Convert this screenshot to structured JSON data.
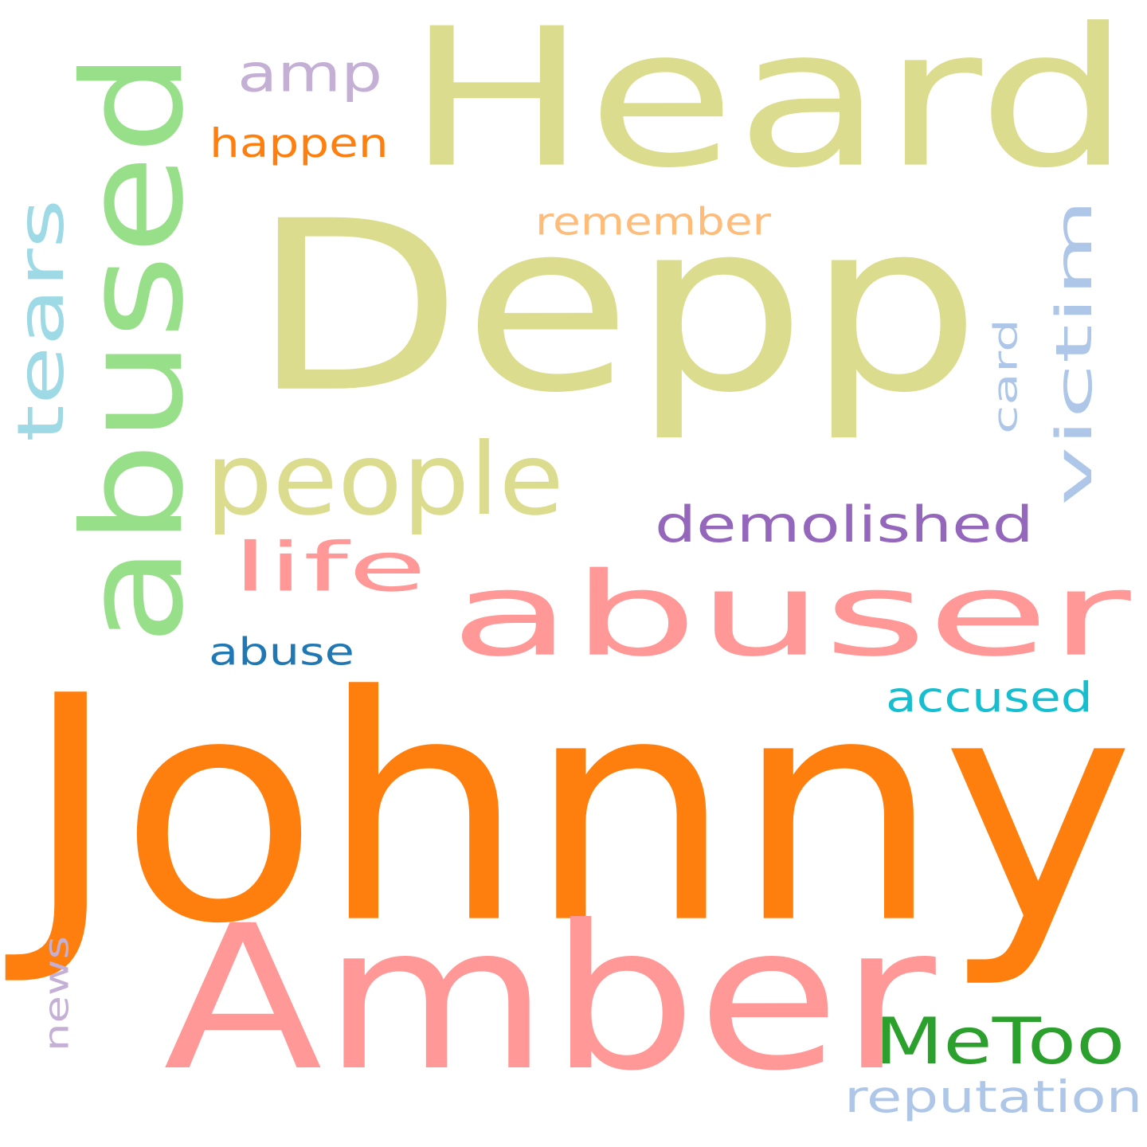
{
  "wordcloud": {
    "background": "#ffffff",
    "words": [
      {
        "text": "Heard",
        "color": "#dbdc8d",
        "orientation": "horizontal"
      },
      {
        "text": "Depp",
        "color": "#dbdc8d",
        "orientation": "horizontal"
      },
      {
        "text": "Johnny",
        "color": "#ff7f0e",
        "orientation": "horizontal"
      },
      {
        "text": "Amber",
        "color": "#ff9896",
        "orientation": "horizontal"
      },
      {
        "text": "abuser",
        "color": "#ff9896",
        "orientation": "horizontal"
      },
      {
        "text": "abused",
        "color": "#98df8a",
        "orientation": "vertical"
      },
      {
        "text": "people",
        "color": "#dbdc8d",
        "orientation": "horizontal"
      },
      {
        "text": "amp",
        "color": "#c5b0d5",
        "orientation": "horizontal"
      },
      {
        "text": "happen",
        "color": "#ff7f0e",
        "orientation": "horizontal"
      },
      {
        "text": "remember",
        "color": "#ffbb78",
        "orientation": "horizontal"
      },
      {
        "text": "tears",
        "color": "#9edae5",
        "orientation": "vertical"
      },
      {
        "text": "victim",
        "color": "#aec7e8",
        "orientation": "vertical"
      },
      {
        "text": "card",
        "color": "#aec7e8",
        "orientation": "vertical"
      },
      {
        "text": "demolished",
        "color": "#9467bd",
        "orientation": "horizontal"
      },
      {
        "text": "life",
        "color": "#ff9896",
        "orientation": "horizontal"
      },
      {
        "text": "abuse",
        "color": "#1f77b4",
        "orientation": "horizontal"
      },
      {
        "text": "accused",
        "color": "#17becf",
        "orientation": "horizontal"
      },
      {
        "text": "news",
        "color": "#c5b0d5",
        "orientation": "vertical"
      },
      {
        "text": "MeToo",
        "color": "#2ca02c",
        "orientation": "horizontal"
      },
      {
        "text": "reputation",
        "color": "#aec7e8",
        "orientation": "horizontal"
      }
    ]
  }
}
